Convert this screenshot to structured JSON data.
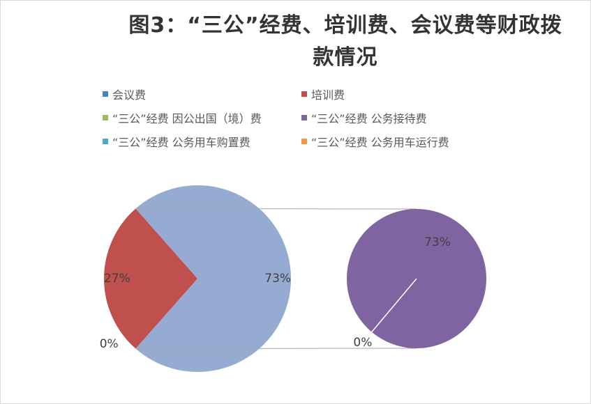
{
  "chart_data": {
    "type": "pie",
    "subtype": "pie-of-pie",
    "title": "图3：“三公”经费、培训费、会议费等财政拨\n款情况",
    "legend": [
      {
        "name": "会议费",
        "color": "#4f81bd"
      },
      {
        "name": "培训费",
        "color": "#c0504d"
      },
      {
        "name": "“三公”经费 因公出国（境）费",
        "color": "#9bbb59"
      },
      {
        "name": "“三公”经费 公务接待费",
        "color": "#8064a2"
      },
      {
        "name": "“三公”经费 公务用车购置费",
        "color": "#4bacc6"
      },
      {
        "name": "“三公”经费 公务用车运行费",
        "color": "#f79646"
      }
    ],
    "main_pie": {
      "slices": [
        {
          "name": "会议费",
          "percent": 0,
          "label": "0%",
          "color": "#4f81bd"
        },
        {
          "name": "培训费",
          "percent": 27,
          "label": "27%",
          "color": "#c0504d"
        },
        {
          "name": "“三公”经费",
          "percent": 73,
          "label": "73%",
          "color": "#95abd1"
        }
      ]
    },
    "secondary_pie": {
      "slices": [
        {
          "name": "“三公”经费 公务接待费",
          "percent": 73,
          "label": "73%",
          "color": "#8064a2"
        },
        {
          "name": "“三公”经费 公务用车购置费",
          "percent": 0,
          "label": "0%",
          "color": "#4bacc6"
        }
      ]
    },
    "legend_position": "top",
    "grid": false
  }
}
